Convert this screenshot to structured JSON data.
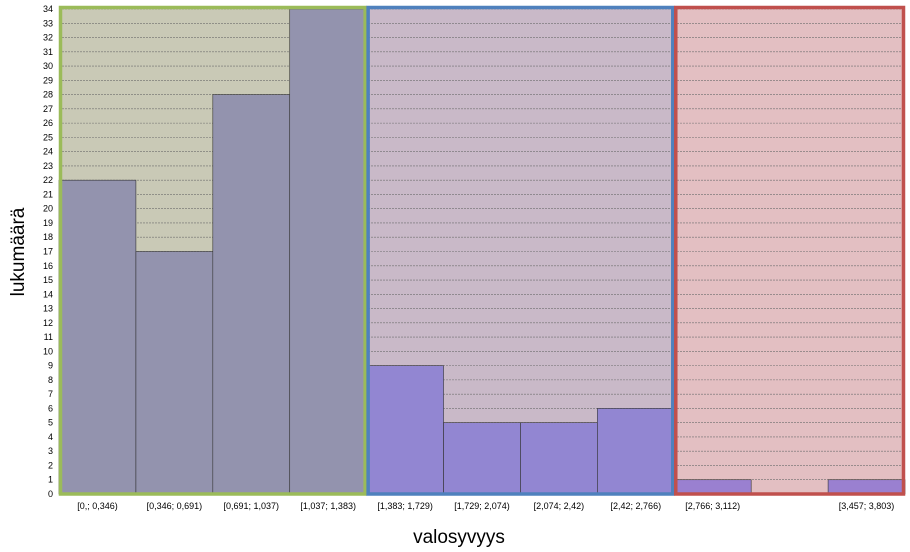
{
  "chart_data": {
    "type": "bar",
    "xlabel": "valosyvyys",
    "ylabel": "lukumäärä",
    "ylim": [
      0,
      34
    ],
    "grid": true,
    "categories": [
      "[0,; 0,346)",
      "[0,346; 0,691)",
      "[0,691; 1,037)",
      "[1,037; 1,383)",
      "[1,383; 1,729)",
      "[1,729; 2,074)",
      "[2,074; 2,42)",
      "[2,42; 2,766)",
      "[2,766; 3,112)",
      "",
      "[3,457; 3,803)"
    ],
    "values": [
      22,
      17,
      28,
      34,
      9,
      5,
      5,
      6,
      1,
      0,
      1
    ],
    "regions": [
      {
        "from_bin": 0,
        "to_bin": 3,
        "fill": "#c9c9b6",
        "border": "#9bbb59"
      },
      {
        "from_bin": 4,
        "to_bin": 7,
        "fill": "#c9b9c8",
        "border": "#4f81bd"
      },
      {
        "from_bin": 8,
        "to_bin": 10,
        "fill": "#e3bfc2",
        "border": "#c0504d"
      }
    ],
    "colors": {
      "bar_group1": "#9393ae",
      "bar_group2": "#9286d2",
      "bar_group3": "#9a80d0",
      "bar_stroke": "#333333",
      "grid": "#6e6e6e"
    }
  }
}
